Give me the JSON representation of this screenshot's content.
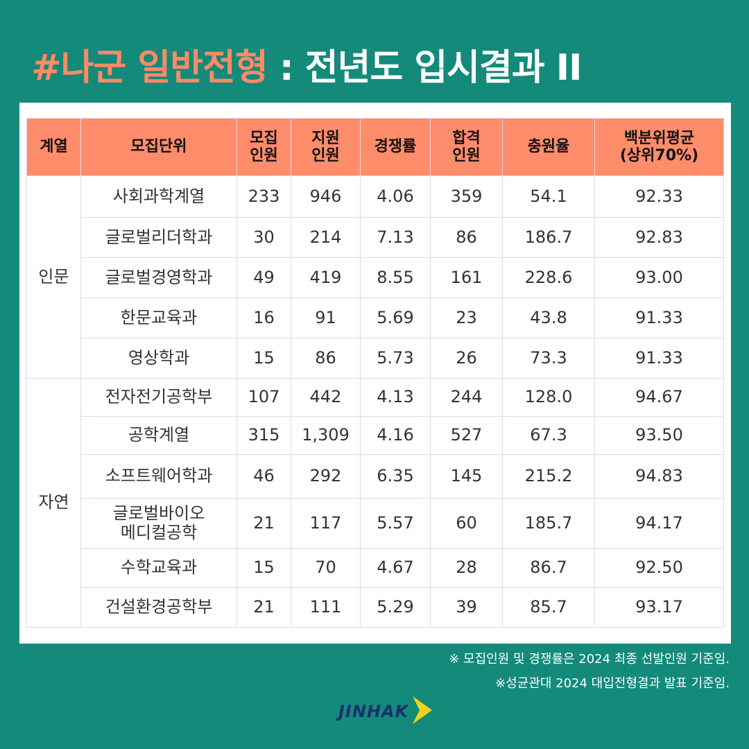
{
  "title": {
    "highlight": "#나군 일반전형",
    "rest": " : 전년도 입시결과 II"
  },
  "colors": {
    "background": "#138a7a",
    "header": "#ff8c6b",
    "title_highlight": "#ff8a65"
  },
  "table": {
    "headers": [
      "계열",
      "모집단위",
      "모집\n인원",
      "지원\n인원",
      "경쟁률",
      "합격\n인원",
      "충원율",
      "백분위평균\n(상위70%)"
    ],
    "groups": [
      {
        "name": "인문",
        "rows": [
          [
            "사회과학계열",
            "233",
            "946",
            "4.06",
            "359",
            "54.1",
            "92.33"
          ],
          [
            "글로벌리더학과",
            "30",
            "214",
            "7.13",
            "86",
            "186.7",
            "92.83"
          ],
          [
            "글로벌경영학과",
            "49",
            "419",
            "8.55",
            "161",
            "228.6",
            "93.00"
          ],
          [
            "한문교육과",
            "16",
            "91",
            "5.69",
            "23",
            "43.8",
            "91.33"
          ],
          [
            "영상학과",
            "15",
            "86",
            "5.73",
            "26",
            "73.3",
            "91.33"
          ]
        ]
      },
      {
        "name": "자연",
        "rows": [
          [
            "전자전기공학부",
            "107",
            "442",
            "4.13",
            "244",
            "128.0",
            "94.67"
          ],
          [
            "공학계열",
            "315",
            "1,309",
            "4.16",
            "527",
            "67.3",
            "93.50"
          ],
          [
            "소프트웨어학과",
            "46",
            "292",
            "6.35",
            "145",
            "215.2",
            "94.83"
          ],
          [
            "글로벌바이오\n메디컬공학",
            "21",
            "117",
            "5.57",
            "60",
            "185.7",
            "94.17"
          ],
          [
            "수학교육과",
            "15",
            "70",
            "4.67",
            "28",
            "86.7",
            "92.50"
          ],
          [
            "건설환경공학부",
            "21",
            "111",
            "5.29",
            "39",
            "85.7",
            "93.17"
          ]
        ]
      }
    ]
  },
  "footnotes": [
    "※ 모집인원 및 경쟁률은 2024 최종 선발인원 기준임.",
    "※성균관대 2024 대입전형결과 발표 기준임."
  ],
  "logo": {
    "text": "JINHAK",
    "icon": "chevron-right-icon",
    "icon_color": "#f5d21a"
  }
}
